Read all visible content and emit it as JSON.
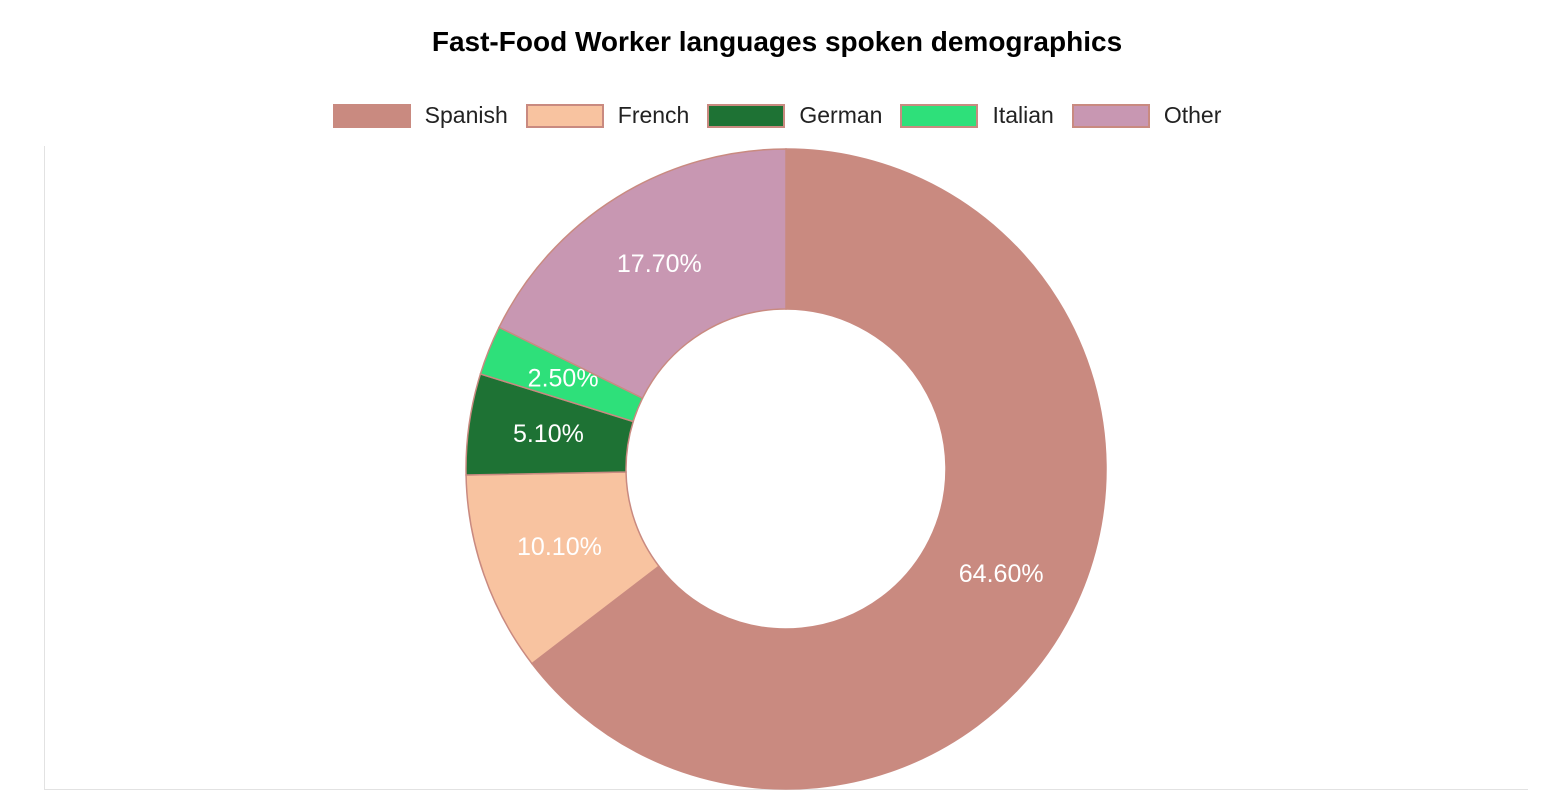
{
  "chart_data": {
    "type": "pie",
    "title": "Fast-Food Worker languages spoken demographics",
    "categories": [
      "Spanish",
      "French",
      "German",
      "Italian",
      "Other"
    ],
    "values": [
      64.6,
      10.1,
      5.1,
      2.5,
      17.7
    ],
    "data_labels": [
      "64.60%",
      "10.10%",
      "5.10%",
      "2.50%",
      "17.70%"
    ],
    "colors": [
      "#c98a80",
      "#f8c3a0",
      "#1e7234",
      "#2ee07a",
      "#c897b2"
    ],
    "legend_position": "top",
    "donut": true
  }
}
